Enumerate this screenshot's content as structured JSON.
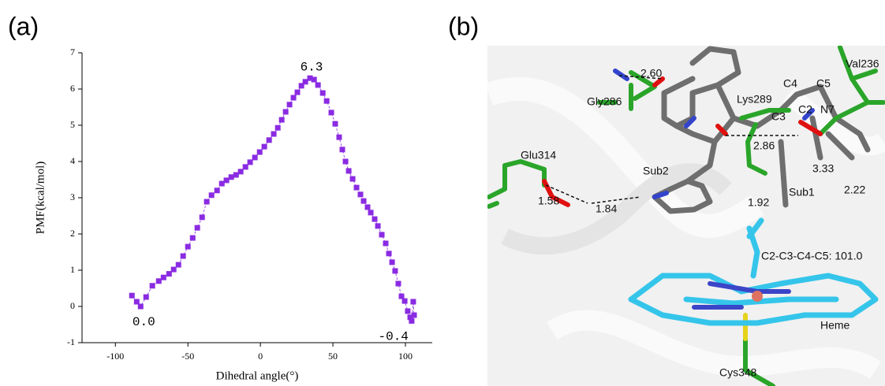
{
  "chart_data": {
    "type": "scatter",
    "xlabel": "Dihedral angle(°)",
    "ylabel": "PMF(kcal/mol)",
    "x": [
      -88.6,
      -85.3,
      -82.6,
      -78.8,
      -74.5,
      -70.1,
      -66.8,
      -63,
      -59.8,
      -56.5,
      -53.3,
      -50,
      -46.7,
      -43.5,
      -40.2,
      -37,
      -33.7,
      -29.9,
      -26.6,
      -23.4,
      -20.1,
      -16.8,
      -13.6,
      -10.3,
      -7.1,
      -3.8,
      -0.5,
      2.7,
      6,
      9.2,
      12,
      14.7,
      17.4,
      20.1,
      22.8,
      25.5,
      28.3,
      31,
      34.2,
      37,
      39.7,
      43,
      45.7,
      48.9,
      51.6,
      54.3,
      56.5,
      58.7,
      60.9,
      63.6,
      66.3,
      69,
      71.2,
      73.9,
      76.1,
      78.8,
      81,
      83.7,
      86.4,
      88.6,
      90.8,
      92.9,
      95.1,
      97.3,
      99.5,
      101.6,
      103.3,
      104.3,
      105.4,
      106
    ],
    "values": [
      0.3,
      0.13,
      0.0,
      0.26,
      0.57,
      0.7,
      0.8,
      0.9,
      1.02,
      1.15,
      1.39,
      1.65,
      1.89,
      2.17,
      2.46,
      2.89,
      3.07,
      3.2,
      3.39,
      3.48,
      3.57,
      3.63,
      3.72,
      3.85,
      3.98,
      4.11,
      4.26,
      4.41,
      4.59,
      4.76,
      4.93,
      5.15,
      5.37,
      5.57,
      5.76,
      5.91,
      6.09,
      6.2,
      6.3,
      6.26,
      6.11,
      5.89,
      5.67,
      5.35,
      5.04,
      4.67,
      4.33,
      4.0,
      3.74,
      3.52,
      3.28,
      3.09,
      2.91,
      2.74,
      2.59,
      2.41,
      2.22,
      1.98,
      1.74,
      1.46,
      1.22,
      0.98,
      0.63,
      0.28,
      0.15,
      -0.13,
      -0.3,
      -0.4,
      0.13,
      -0.24
    ],
    "color": "#8a2be2",
    "annotations": [
      "6.3",
      "0.0",
      "-0.4"
    ],
    "xlim": [
      -123,
      118.5
    ],
    "xticks": [
      -100,
      -50,
      0,
      50,
      100
    ],
    "ylim": [
      -1,
      7
    ],
    "yticks": [
      -1,
      0,
      1,
      2,
      3,
      4,
      5,
      6,
      7
    ]
  },
  "figure": {
    "panel_labels": [
      "(a)",
      "(b)"
    ],
    "structure_labels": [
      "2.60",
      "Gly286",
      "Lys289",
      "C4",
      "C5",
      "Val236",
      "C3",
      "C2",
      "N7",
      "2.86",
      "Glu314",
      "Sub2",
      "3.33",
      "2.22",
      "1.92",
      "Sub1",
      "1.58",
      "1.84",
      "C2-C3-C4-C5: 101.0",
      "Heme",
      "Cys348"
    ]
  }
}
